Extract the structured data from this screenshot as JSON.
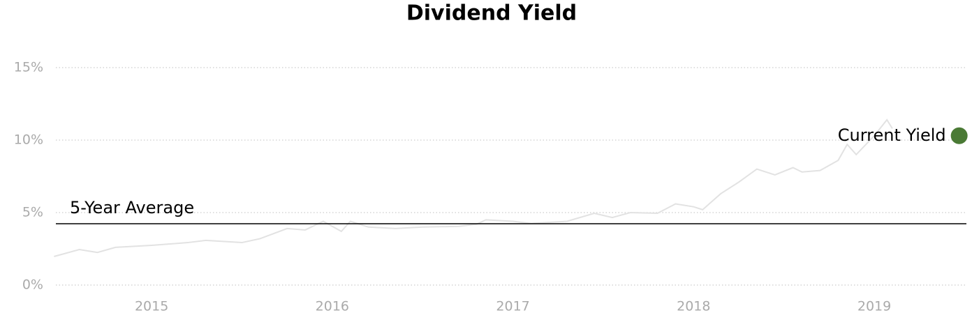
{
  "chart_data": {
    "type": "line",
    "title": "Dividend Yield",
    "x": [
      2014.46,
      2014.6,
      2014.7,
      2014.8,
      2015.0,
      2015.2,
      2015.3,
      2015.5,
      2015.6,
      2015.75,
      2015.85,
      2015.95,
      2016.05,
      2016.1,
      2016.2,
      2016.35,
      2016.5,
      2016.7,
      2016.8,
      2016.85,
      2017.0,
      2017.1,
      2017.3,
      2017.45,
      2017.55,
      2017.65,
      2017.8,
      2017.9,
      2018.0,
      2018.05,
      2018.15,
      2018.25,
      2018.35,
      2018.45,
      2018.55,
      2018.6,
      2018.7,
      2018.8,
      2018.85,
      2018.9,
      2019.0,
      2019.07,
      2019.1
    ],
    "series": [
      {
        "color": "#e2e2e2",
        "values": [
          1.97,
          2.45,
          2.25,
          2.6,
          2.74,
          2.93,
          3.08,
          2.93,
          3.2,
          3.9,
          3.8,
          4.4,
          3.7,
          4.4,
          4.0,
          3.9,
          4.0,
          4.05,
          4.2,
          4.5,
          4.4,
          4.25,
          4.4,
          4.95,
          4.66,
          5.0,
          4.95,
          5.6,
          5.4,
          5.2,
          6.3,
          7.1,
          8.0,
          7.6,
          8.1,
          7.8,
          7.9,
          8.6,
          9.7,
          9.0,
          10.3,
          11.4,
          10.8
        ]
      }
    ],
    "average": {
      "label": "5-Year Average",
      "value": 4.23,
      "color": "#000000"
    },
    "current": {
      "label": "Current Yield",
      "x": 2019.47,
      "value": 10.3,
      "color": "#4a7a35"
    },
    "xlim": [
      2014.47,
      2019.51
    ],
    "xticks": [
      2015,
      2016,
      2017,
      2018,
      2019
    ],
    "ylim": [
      0,
      15
    ],
    "yticks": [
      {
        "value": 0,
        "label": "0%"
      },
      {
        "value": 5,
        "label": "5%"
      },
      {
        "value": 10,
        "label": "10%"
      },
      {
        "value": 15,
        "label": "15%"
      }
    ],
    "grid": true
  }
}
